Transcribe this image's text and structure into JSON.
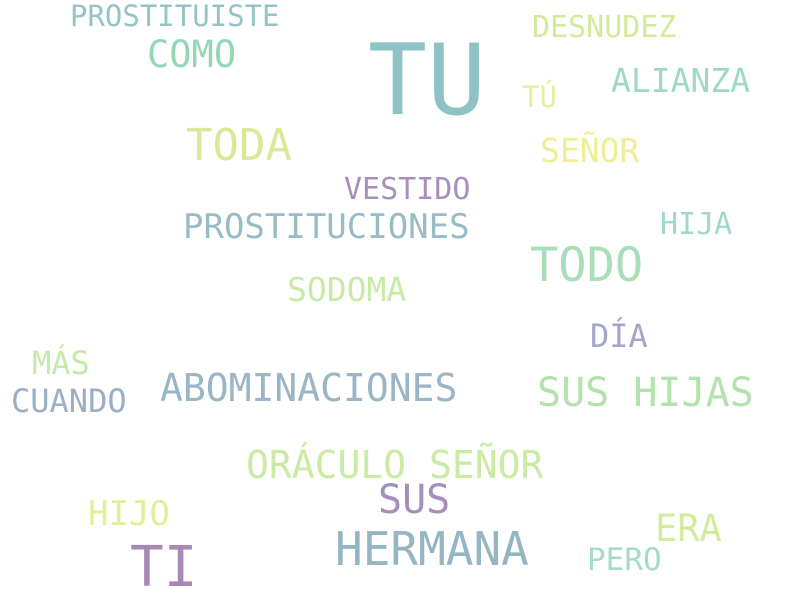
{
  "words": [
    {
      "text": "TU",
      "color": "#8ec3c5"
    },
    {
      "text": "PROSTITUISTE",
      "color": "#95c4c8"
    },
    {
      "text": "COMO",
      "color": "#93d7b5"
    },
    {
      "text": "DESNUDEZ",
      "color": "#d2eb9b"
    },
    {
      "text": "ALIANZA",
      "color": "#9fd9c3"
    },
    {
      "text": "TÚ",
      "color": "#e5ef9d"
    },
    {
      "text": "TODA",
      "color": "#d9e99a"
    },
    {
      "text": "SEÑOR",
      "color": "#f0ee95"
    },
    {
      "text": "VESTIDO",
      "color": "#a98fbd"
    },
    {
      "text": "PROSTITUCIONES",
      "color": "#97bcc6"
    },
    {
      "text": "HIJA",
      "color": "#a2d8cc"
    },
    {
      "text": "TODO",
      "color": "#a9dfb8"
    },
    {
      "text": "SODOMA",
      "color": "#c7eba7"
    },
    {
      "text": "DÍA",
      "color": "#a3a6c7"
    },
    {
      "text": "MÁS",
      "color": "#c5eaa8"
    },
    {
      "text": "CUANDO",
      "color": "#9aaec6"
    },
    {
      "text": "ABOMINACIONES",
      "color": "#9ab5c6"
    },
    {
      "text": "SUS HIJAS",
      "color": "#b3e3ad"
    },
    {
      "text": "ORÁCULO SEÑOR",
      "color": "#c9eba4"
    },
    {
      "text": "SUS",
      "color": "#a48fba"
    },
    {
      "text": "HIJO",
      "color": "#e2ef9a"
    },
    {
      "text": "HERMANA",
      "color": "#96b5c3"
    },
    {
      "text": "ERA",
      "color": "#d4eb9d"
    },
    {
      "text": "PERO",
      "color": "#a6dcc7"
    },
    {
      "text": "TI",
      "color": "#a889b6"
    }
  ]
}
